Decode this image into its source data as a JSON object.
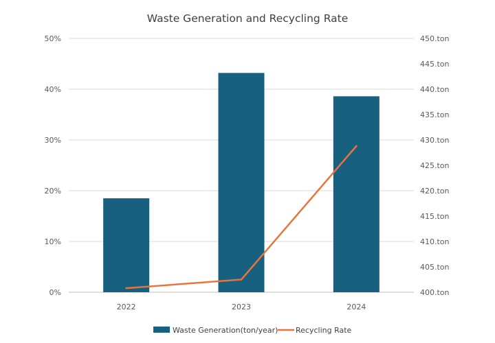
{
  "chart_data": {
    "type": "bar",
    "title": "Waste Generation and Recycling Rate",
    "categories": [
      "2022",
      "2023",
      "2024"
    ],
    "series": [
      {
        "name": "Waste Generation(ton/year)",
        "type": "bar",
        "axis": "right",
        "values": [
          418.5,
          443.2,
          438.6
        ],
        "color": "#17607f"
      },
      {
        "name": "Recycling Rate",
        "type": "line",
        "axis": "left",
        "values": [
          0.008,
          0.025,
          0.288
        ],
        "color": "#e8743b"
      }
    ],
    "y_left": {
      "ylim": [
        0,
        0.5
      ],
      "tick_labels": [
        "0%",
        "10%",
        "20%",
        "30%",
        "40%",
        "50%"
      ]
    },
    "y_right": {
      "ylim": [
        400,
        450
      ],
      "tick_labels": [
        "400.ton",
        "405.ton",
        "410.ton",
        "415.ton",
        "420.ton",
        "425.ton",
        "430.ton",
        "435.ton",
        "440.ton",
        "445.ton",
        "450.ton"
      ]
    },
    "grid": true,
    "legend": "bottom"
  }
}
